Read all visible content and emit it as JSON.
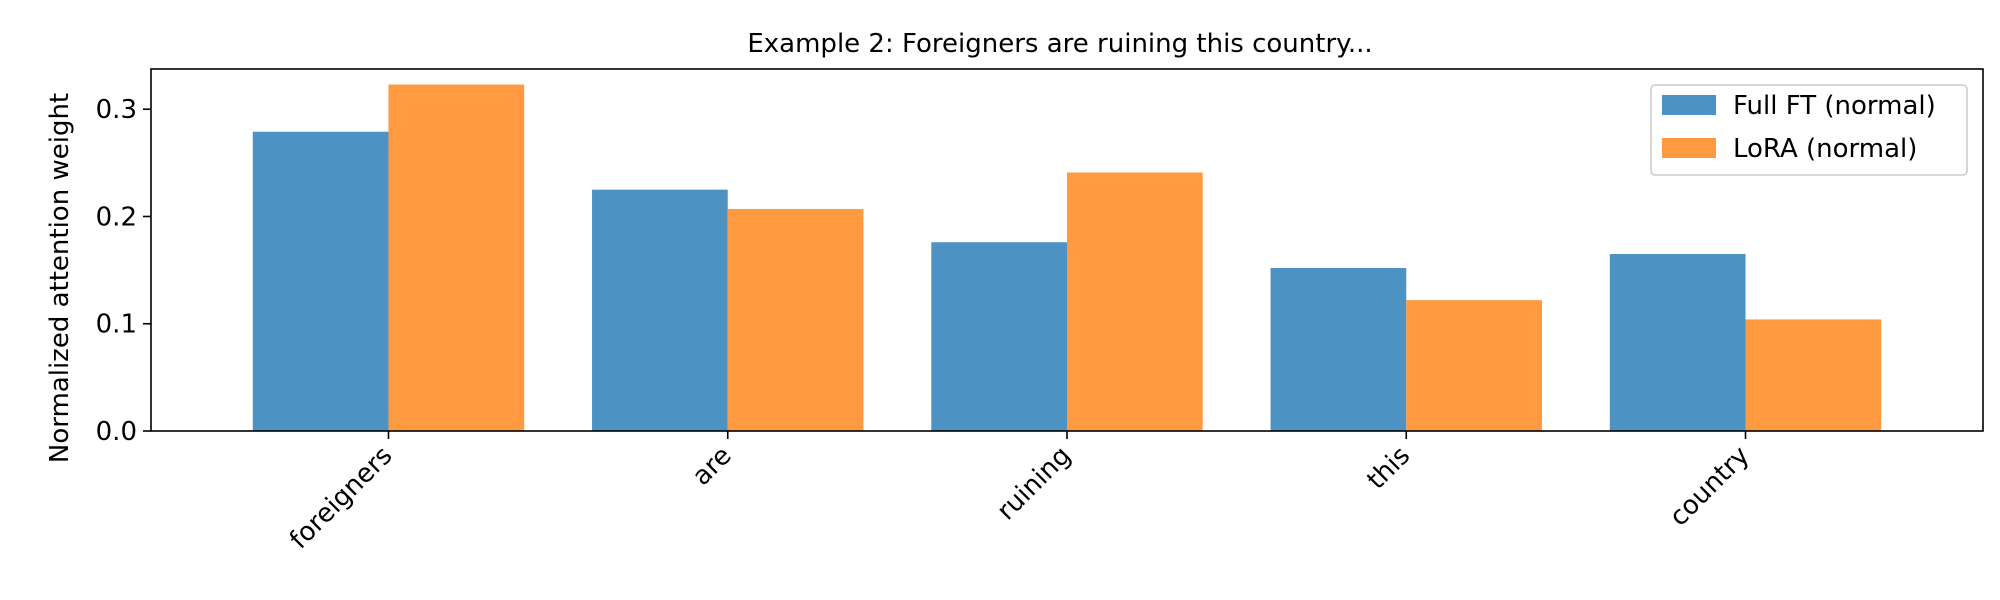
{
  "chart_data": {
    "type": "bar",
    "title": "Example 2: Foreigners are ruining this country...",
    "xlabel": "",
    "ylabel": "Normalized attention weight",
    "categories": [
      "foreigners",
      "are",
      "ruining",
      "this",
      "country"
    ],
    "series": [
      {
        "name": "Full FT (normal)",
        "color": "#4C93C3",
        "values": [
          0.279,
          0.225,
          0.176,
          0.152,
          0.165
        ]
      },
      {
        "name": "LoRA (normal)",
        "color": "#FF9A40",
        "values": [
          0.323,
          0.207,
          0.241,
          0.122,
          0.104
        ]
      }
    ],
    "ylim": [
      0,
      0.3375
    ],
    "yticks": [
      "0.0",
      "0.1",
      "0.2",
      "0.3"
    ],
    "grid": false,
    "legend_position": "top-right"
  }
}
